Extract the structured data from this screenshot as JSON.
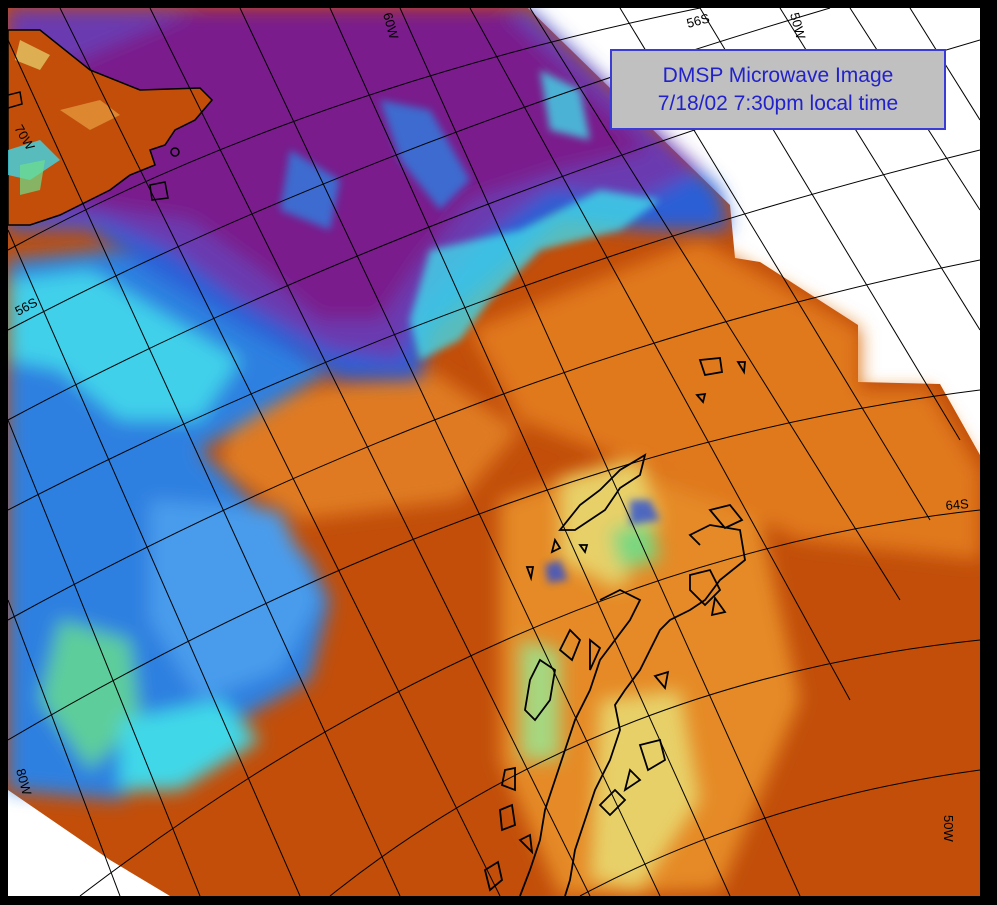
{
  "title": {
    "line1": "DMSP Microwave Image",
    "line2": "7/18/02 7:30pm local time"
  },
  "graticule_labels": {
    "lon_60w": "60W",
    "lon_50w_top": "50W",
    "lon_70w": "70W",
    "lon_80w": "80W",
    "lon_50w_right": "50W",
    "lat_56s_top": "56S",
    "lat_56s_left": "56S",
    "lat_64s": "64S"
  },
  "colors": {
    "background": "#000000",
    "nodata": "#ffffff",
    "land_coast": "#000000",
    "grid": "#000000",
    "low_scale": "#7a1a8c",
    "mid_blue": "#2f7fe0",
    "cyan": "#3fd8e8",
    "green": "#6ee08a",
    "yellow": "#e8e070",
    "orange": "#e07818",
    "high_scale": "#c04a08"
  }
}
